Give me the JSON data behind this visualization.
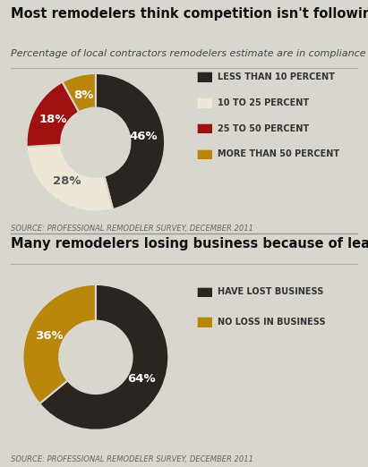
{
  "bg_color": "#d9d6ce",
  "chart1": {
    "title": "Most remodelers think competition isn't following LRRP rules",
    "subtitle": "Percentage of local contractors remodelers estimate are in compliance",
    "values": [
      46,
      28,
      18,
      8
    ],
    "colors": [
      "#2b2522",
      "#ede8d5",
      "#a01010",
      "#b8860b"
    ],
    "labels": [
      "46%",
      "28%",
      "18%",
      "8%"
    ],
    "label_colors": [
      "#ffffff",
      "#555555",
      "#ffffff",
      "#ffffff"
    ],
    "legend_labels": [
      "LESS THAN 10 PERCENT",
      "10 TO 25 PERCENT",
      "25 TO 50 PERCENT",
      "MORE THAN 50 PERCENT"
    ],
    "source": "SOURCE: PROFESSIONAL REMODELER SURVEY, DECEMBER 2011",
    "start_angle": 90
  },
  "chart2": {
    "title": "Many remodelers losing business because of lead paint rules",
    "values": [
      64,
      36
    ],
    "colors": [
      "#2b2522",
      "#b8860b"
    ],
    "labels": [
      "64%",
      "36%"
    ],
    "label_colors": [
      "#ffffff",
      "#ffffff"
    ],
    "legend_labels": [
      "HAVE LOST BUSINESS",
      "NO LOSS IN BUSINESS"
    ],
    "source": "SOURCE: PROFESSIONAL REMODELER SURVEY, DECEMBER 2011",
    "start_angle": 90
  },
  "title_fontsize": 10.5,
  "subtitle_fontsize": 8,
  "source_fontsize": 6,
  "legend_fontsize": 7,
  "label_fontsize": 9.5
}
